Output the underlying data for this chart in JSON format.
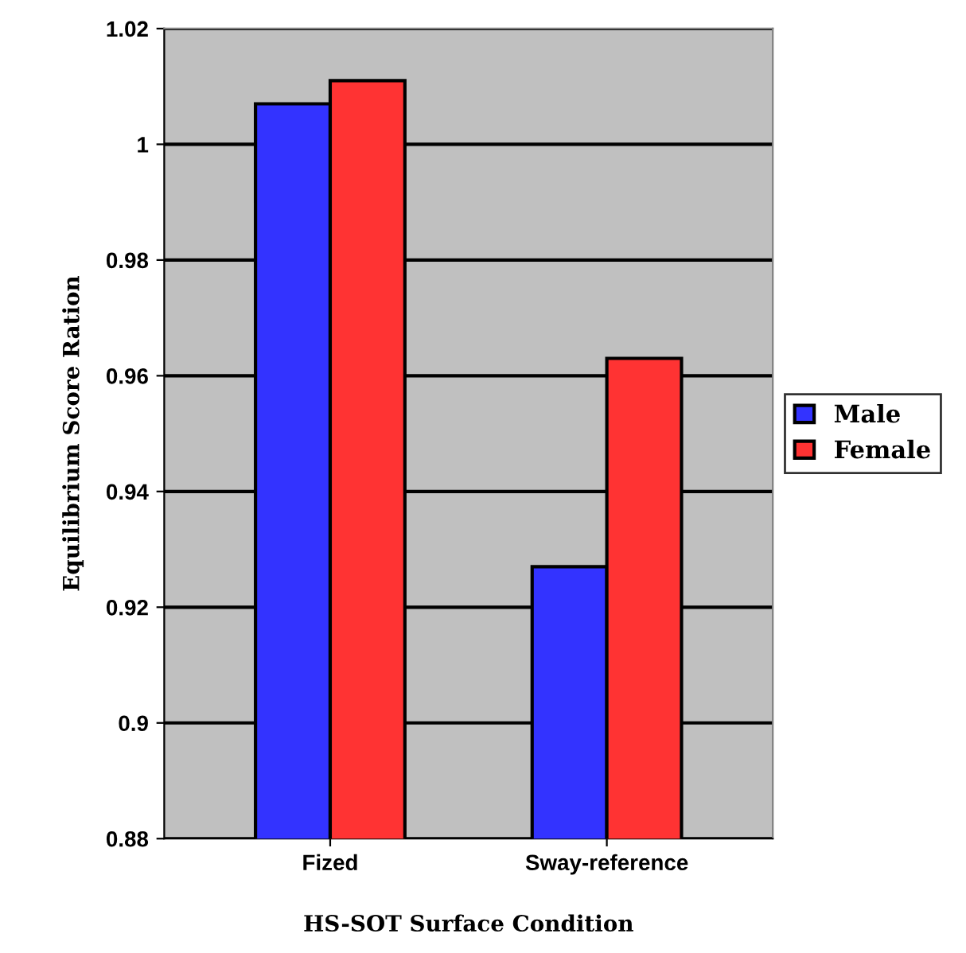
{
  "chart_data": {
    "type": "bar",
    "xlabel": "HS-SOT Surface Condition",
    "ylabel": "Equilibrium Score Ration",
    "categories": [
      "Fized",
      "Sway-reference"
    ],
    "series": [
      {
        "name": "Male",
        "color": "#3333ff",
        "values": [
          1.007,
          0.927
        ]
      },
      {
        "name": "Female",
        "color": "#ff3333",
        "values": [
          1.011,
          0.963
        ]
      }
    ],
    "ylim": [
      0.88,
      1.02
    ],
    "yticks": [
      0.88,
      {
        "value": 0.9,
        "label": "0.9"
      },
      0.92,
      0.94,
      0.96,
      0.98,
      {
        "value": 1.0,
        "label": "1"
      },
      1.02
    ],
    "grid": "y",
    "legend": "right"
  }
}
